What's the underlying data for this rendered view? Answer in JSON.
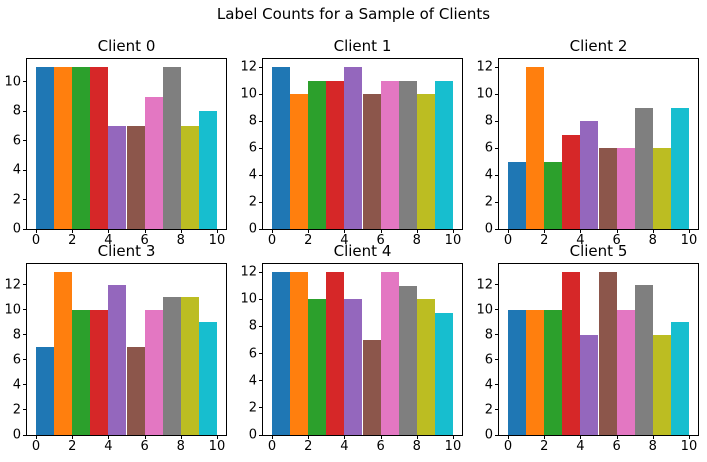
{
  "figure": {
    "suptitle": "Label Counts for a Sample of Clients",
    "background": "#ffffff",
    "spine_color": "#000000",
    "text_color": "#000000"
  },
  "palette": [
    "#1f77b4",
    "#ff7f0e",
    "#2ca02c",
    "#d62728",
    "#9467bd",
    "#8c564b",
    "#e377c2",
    "#7f7f7f",
    "#bcbd22",
    "#17becf"
  ],
  "chart_data": [
    {
      "type": "bar",
      "title": "Client 0",
      "x": [
        0,
        1,
        2,
        3,
        4,
        5,
        6,
        7,
        8,
        9
      ],
      "values": [
        11,
        11,
        11,
        11,
        7,
        7,
        9,
        11,
        7,
        8
      ],
      "bar_width": 1,
      "xlim": [
        -0.5,
        10.5
      ],
      "ylim": [
        0,
        11.55
      ],
      "xticks": [
        0,
        2,
        4,
        6,
        8,
        10
      ],
      "yticks": [
        0,
        2,
        4,
        6,
        8,
        10
      ],
      "grid": false,
      "legend": null
    },
    {
      "type": "bar",
      "title": "Client 1",
      "x": [
        0,
        1,
        2,
        3,
        4,
        5,
        6,
        7,
        8,
        9
      ],
      "values": [
        12,
        10,
        11,
        11,
        12,
        10,
        11,
        11,
        10,
        11
      ],
      "bar_width": 1,
      "xlim": [
        -0.5,
        10.5
      ],
      "ylim": [
        0,
        12.6
      ],
      "xticks": [
        0,
        2,
        4,
        6,
        8,
        10
      ],
      "yticks": [
        0,
        2,
        4,
        6,
        8,
        10,
        12
      ],
      "grid": false,
      "legend": null
    },
    {
      "type": "bar",
      "title": "Client 2",
      "x": [
        0,
        1,
        2,
        3,
        4,
        5,
        6,
        7,
        8,
        9
      ],
      "values": [
        5,
        12,
        5,
        7,
        8,
        6,
        6,
        9,
        6,
        9
      ],
      "bar_width": 1,
      "xlim": [
        -0.5,
        10.5
      ],
      "ylim": [
        0,
        12.6
      ],
      "xticks": [
        0,
        2,
        4,
        6,
        8,
        10
      ],
      "yticks": [
        0,
        2,
        4,
        6,
        8,
        10,
        12
      ],
      "grid": false,
      "legend": null
    },
    {
      "type": "bar",
      "title": "Client 3",
      "x": [
        0,
        1,
        2,
        3,
        4,
        5,
        6,
        7,
        8,
        9
      ],
      "values": [
        7,
        13,
        10,
        10,
        12,
        7,
        10,
        11,
        11,
        9
      ],
      "bar_width": 1,
      "xlim": [
        -0.5,
        10.5
      ],
      "ylim": [
        0,
        13.65
      ],
      "xticks": [
        0,
        2,
        4,
        6,
        8,
        10
      ],
      "yticks": [
        0,
        2,
        4,
        6,
        8,
        10,
        12
      ],
      "grid": false,
      "legend": null
    },
    {
      "type": "bar",
      "title": "Client 4",
      "x": [
        0,
        1,
        2,
        3,
        4,
        5,
        6,
        7,
        8,
        9
      ],
      "values": [
        12,
        12,
        10,
        12,
        10,
        7,
        12,
        11,
        10,
        9
      ],
      "bar_width": 1,
      "xlim": [
        -0.5,
        10.5
      ],
      "ylim": [
        0,
        12.6
      ],
      "xticks": [
        0,
        2,
        4,
        6,
        8,
        10
      ],
      "yticks": [
        0,
        2,
        4,
        6,
        8,
        10,
        12
      ],
      "grid": false,
      "legend": null
    },
    {
      "type": "bar",
      "title": "Client 5",
      "x": [
        0,
        1,
        2,
        3,
        4,
        5,
        6,
        7,
        8,
        9
      ],
      "values": [
        10,
        10,
        10,
        13,
        8,
        13,
        10,
        12,
        8,
        9
      ],
      "bar_width": 1,
      "xlim": [
        -0.5,
        10.5
      ],
      "ylim": [
        0,
        13.65
      ],
      "xticks": [
        0,
        2,
        4,
        6,
        8,
        10
      ],
      "yticks": [
        0,
        2,
        4,
        6,
        8,
        10,
        12
      ],
      "grid": false,
      "legend": null
    }
  ]
}
